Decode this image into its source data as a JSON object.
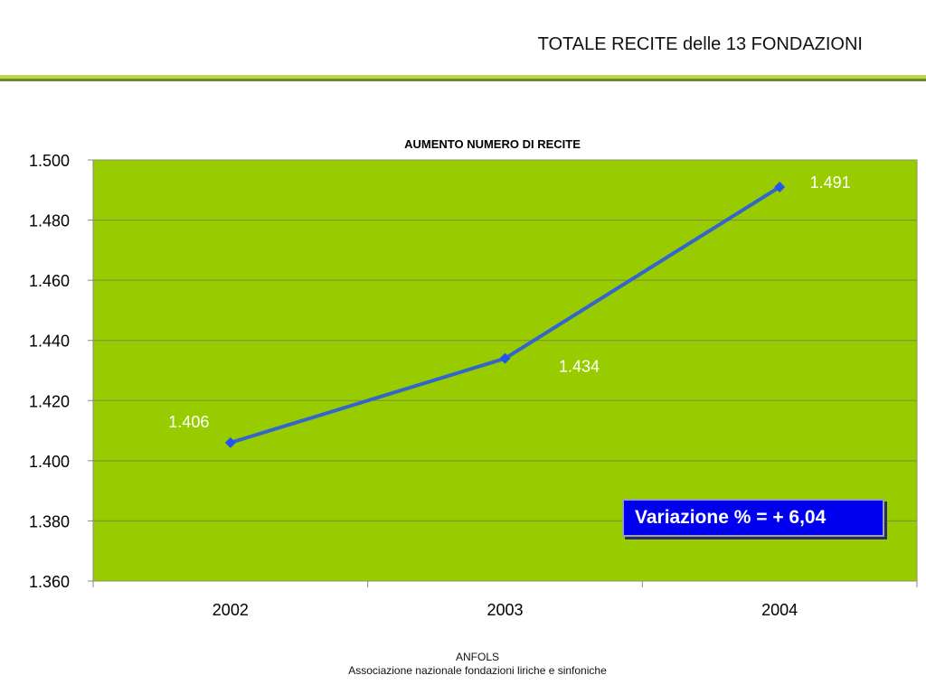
{
  "slide": {
    "title": "TOTALE RECITE delle 13 FONDAZIONI"
  },
  "footer": {
    "org": "ANFOLS",
    "full_name": "Associazione nazionale fondazioni liriche e sinfoniche"
  },
  "callout": {
    "text": "Variazione % =  + 6,04"
  },
  "colors": {
    "plot_background": "#99cc00",
    "line": "#3366cc",
    "marker": "#2255ee",
    "callout_background": "#0000ee",
    "rule_light": "#b8d84a",
    "rule_dark": "#6f8a2a"
  },
  "chart_data": {
    "type": "line",
    "title": "AUMENTO NUMERO DI RECITE",
    "xlabel": "",
    "ylabel": "",
    "categories": [
      "2002",
      "2003",
      "2004"
    ],
    "series": [
      {
        "values": [
          1406,
          1434,
          1491
        ]
      }
    ],
    "data_labels": [
      "1.406",
      "1.434",
      "1.491"
    ],
    "ylim": [
      1360,
      1500
    ],
    "y_ticks": [
      1360,
      1380,
      1400,
      1420,
      1440,
      1460,
      1480,
      1500
    ],
    "y_tick_labels": [
      "1.360",
      "1.380",
      "1.400",
      "1.420",
      "1.440",
      "1.460",
      "1.480",
      "1.500"
    ],
    "grid": true,
    "legend": "none"
  }
}
